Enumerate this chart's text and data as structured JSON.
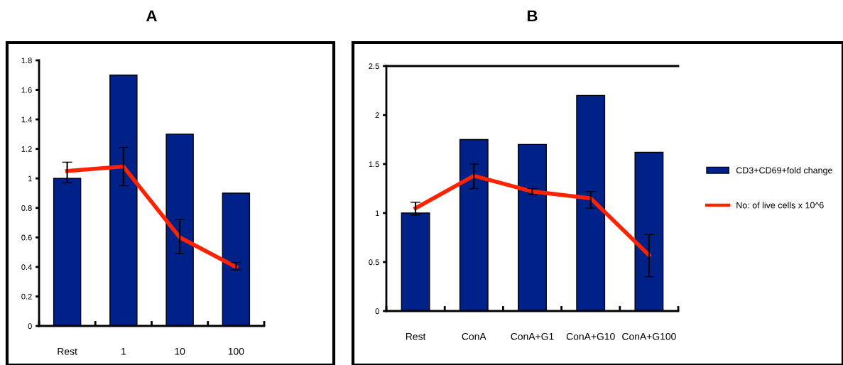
{
  "chart_data": [
    {
      "type": "bar",
      "title": "A",
      "categories": [
        "Rest",
        "1",
        "10",
        "100"
      ],
      "ylim": [
        0,
        1.8
      ],
      "yticks": [
        0,
        0.2,
        0.4,
        0.6,
        0.8,
        1,
        1.2,
        1.4,
        1.6,
        1.8
      ],
      "grid": false,
      "legend": false,
      "series": [
        {
          "color": "#002288",
          "values": [
            1.0,
            1.7,
            1.3,
            0.9
          ]
        },
        {
          "type": "line",
          "color": "#ff2200",
          "values": [
            1.05,
            1.08,
            0.6,
            0.4
          ],
          "errors": [
            [
              0.97,
              1.11
            ],
            [
              0.95,
              1.21
            ],
            [
              0.49,
              0.72
            ],
            [
              0.38,
              0.43
            ]
          ]
        }
      ]
    },
    {
      "type": "bar",
      "title": "B",
      "categories": [
        "Rest",
        "ConA",
        "ConA+G1",
        "ConA+G10",
        "ConA+G100"
      ],
      "ylim": [
        0,
        2.5
      ],
      "yticks": [
        0,
        0.5,
        1,
        1.5,
        2,
        2.5
      ],
      "grid": false,
      "legend": "right",
      "series": [
        {
          "name": "CD3+CD69+fold change",
          "color": "#002288",
          "values": [
            1.0,
            1.75,
            1.7,
            2.2,
            1.62
          ]
        },
        {
          "type": "line",
          "name": "No: of live cells x 10^6",
          "color": "#ff2200",
          "values": [
            1.05,
            1.38,
            1.22,
            1.15,
            0.57
          ],
          "errors": [
            [
              0.98,
              1.11
            ],
            [
              1.25,
              1.5
            ],
            [
              1.19,
              1.25
            ],
            [
              1.05,
              1.22
            ],
            [
              0.35,
              0.78
            ]
          ]
        }
      ]
    }
  ]
}
